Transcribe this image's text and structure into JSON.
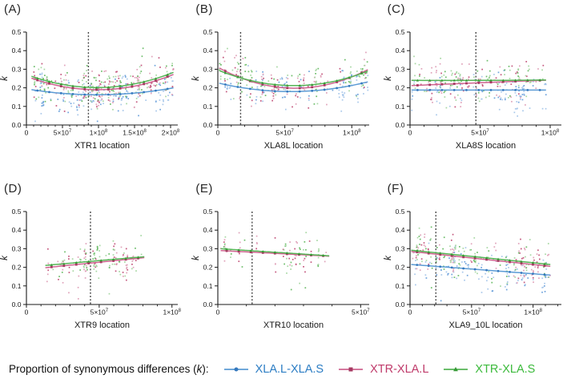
{
  "figure": {
    "background": "#ffffff",
    "ylabel_shared": "k",
    "ylim_shared": [
      0,
      0.5
    ]
  },
  "colors": {
    "blue": {
      "point": "#a9c8ea",
      "point2": "#6fa3dc",
      "line": "#5b9bd5",
      "marker": "#3679be",
      "text": "#2c7dc4"
    },
    "pink": {
      "point": "#e0a3ba",
      "point2": "#c4587e",
      "line": "#cf6490",
      "marker": "#a63a62",
      "text": "#bf3a6a"
    },
    "green": {
      "point": "#a8d8a4",
      "point2": "#6dbd6a",
      "line": "#56b456",
      "marker": "#379a37",
      "text": "#3cba3c"
    },
    "axis": "#1a1a1a",
    "dashed": "#4a4a4a"
  },
  "legend": {
    "prefix": "Proportion of synonymous differences (",
    "k_symbol": "k",
    "suffix": "):",
    "items": [
      {
        "name": "XLA.L-XLA.S",
        "marker": "circle",
        "color_key": "blue"
      },
      {
        "name": "XTR-XLA.L",
        "marker": "square",
        "color_key": "pink"
      },
      {
        "name": "XTR-XLA.S",
        "marker": "triangle",
        "color_key": "green"
      }
    ]
  },
  "chart_data": [
    {
      "id": "A",
      "panel_label": "(A)",
      "type": "scatter",
      "xlabel": "XTR1 location",
      "ylabel": "k",
      "xlim": [
        0,
        210000000
      ],
      "ylim": [
        0,
        0.5
      ],
      "xticks": [
        {
          "v": 0,
          "label": "0"
        },
        {
          "v": 50000000,
          "label": "5×10^7"
        },
        {
          "v": 100000000,
          "label": "1×10^8"
        },
        {
          "v": 150000000,
          "label": "1.5×10^8"
        },
        {
          "v": 200000000,
          "label": "2×10^8"
        }
      ],
      "minor_xtick_step": 10000000,
      "yticks": [
        0,
        0.1,
        0.2,
        0.3,
        0.4,
        0.5
      ],
      "dashed_line_x": 86000000,
      "data_xrange": [
        7000000,
        204000000
      ],
      "series": [
        {
          "name": "XLA.L-XLA.S",
          "color_key": "blue",
          "marker": "circle",
          "trend": {
            "shape": "quadratic",
            "y_start": 0.19,
            "y_mid": 0.163,
            "y_end": 0.2
          },
          "scatter": {
            "n": 150,
            "spread": 0.05
          }
        },
        {
          "name": "XTR-XLA.L",
          "color_key": "pink",
          "marker": "square",
          "trend": {
            "shape": "quadratic",
            "y_start": 0.252,
            "y_mid": 0.19,
            "y_end": 0.272
          },
          "scatter": {
            "n": 150,
            "spread": 0.05
          }
        },
        {
          "name": "XTR-XLA.S",
          "color_key": "green",
          "marker": "triangle",
          "trend": {
            "shape": "quadratic",
            "y_start": 0.262,
            "y_mid": 0.202,
            "y_end": 0.283
          },
          "scatter": {
            "n": 150,
            "spread": 0.05
          }
        }
      ]
    },
    {
      "id": "B",
      "panel_label": "(B)",
      "type": "scatter",
      "xlabel": "XLA8L location",
      "ylabel": "k",
      "xlim": [
        0,
        113000000
      ],
      "ylim": [
        0,
        0.5
      ],
      "xticks": [
        {
          "v": 0,
          "label": "0"
        },
        {
          "v": 50000000,
          "label": "5×10^7"
        },
        {
          "v": 100000000,
          "label": "1×10^8"
        }
      ],
      "minor_xtick_step": 10000000,
      "yticks": [
        0,
        0.1,
        0.2,
        0.3,
        0.4,
        0.5
      ],
      "dashed_line_x": 17000000,
      "data_xrange": [
        1000000,
        112000000
      ],
      "series": [
        {
          "name": "XLA.L-XLA.S",
          "color_key": "blue",
          "marker": "circle",
          "trend": {
            "shape": "quadratic",
            "y_start": 0.225,
            "y_mid": 0.18,
            "y_end": 0.232
          },
          "scatter": {
            "n": 95,
            "spread": 0.048
          }
        },
        {
          "name": "XTR-XLA.L",
          "color_key": "pink",
          "marker": "square",
          "trend": {
            "shape": "quadratic",
            "y_start": 0.307,
            "y_mid": 0.198,
            "y_end": 0.298
          },
          "scatter": {
            "n": 95,
            "spread": 0.05
          }
        },
        {
          "name": "XTR-XLA.S",
          "color_key": "green",
          "marker": "triangle",
          "trend": {
            "shape": "quadratic",
            "y_start": 0.293,
            "y_mid": 0.212,
            "y_end": 0.29
          },
          "scatter": {
            "n": 95,
            "spread": 0.05
          }
        }
      ]
    },
    {
      "id": "C",
      "panel_label": "(C)",
      "type": "scatter",
      "xlabel": "XLA8S location",
      "ylabel": "k",
      "xlim": [
        0,
        108000000
      ],
      "ylim": [
        0,
        0.5
      ],
      "xticks": [
        {
          "v": 0,
          "label": "0"
        },
        {
          "v": 50000000,
          "label": "5×10^7"
        },
        {
          "v": 100000000,
          "label": "1×10^8"
        }
      ],
      "minor_xtick_step": 10000000,
      "yticks": [
        0,
        0.1,
        0.2,
        0.3,
        0.4,
        0.5
      ],
      "dashed_line_x": 47000000,
      "data_xrange": [
        1000000,
        97000000
      ],
      "series": [
        {
          "name": "XLA.L-XLA.S",
          "color_key": "blue",
          "marker": "circle",
          "trend": {
            "shape": "linear",
            "y_start": 0.188,
            "y_mid": 0.188,
            "y_end": 0.188
          },
          "scatter": {
            "n": 95,
            "spread": 0.048
          }
        },
        {
          "name": "XTR-XLA.L",
          "color_key": "pink",
          "marker": "square",
          "trend": {
            "shape": "linear",
            "y_start": 0.212,
            "y_mid": 0.227,
            "y_end": 0.241
          },
          "scatter": {
            "n": 95,
            "spread": 0.05
          }
        },
        {
          "name": "XTR-XLA.S",
          "color_key": "green",
          "marker": "triangle",
          "trend": {
            "shape": "linear",
            "y_start": 0.24,
            "y_mid": 0.24,
            "y_end": 0.242
          },
          "scatter": {
            "n": 95,
            "spread": 0.05
          }
        }
      ]
    },
    {
      "id": "D",
      "panel_label": "(D)",
      "type": "scatter",
      "xlabel": "XTR9 location",
      "ylabel": "k",
      "xlim": [
        0,
        104000000
      ],
      "ylim": [
        0,
        0.5
      ],
      "xticks": [
        {
          "v": 0,
          "label": "0"
        },
        {
          "v": 50000000,
          "label": "5×10^7"
        },
        {
          "v": 100000000,
          "label": "1×10^8"
        }
      ],
      "minor_xtick_step": 10000000,
      "yticks": [
        0,
        0.1,
        0.2,
        0.3,
        0.4,
        0.5
      ],
      "dashed_line_x": 44000000,
      "data_xrange": [
        13000000,
        81000000
      ],
      "series": [
        {
          "name": "XTR-XLA.L",
          "color_key": "pink",
          "marker": "square",
          "trend": {
            "shape": "linear",
            "y_start": 0.198,
            "y_mid": 0.225,
            "y_end": 0.252
          },
          "scatter": {
            "n": 72,
            "spread": 0.042
          }
        },
        {
          "name": "XTR-XLA.S",
          "color_key": "green",
          "marker": "triangle",
          "trend": {
            "shape": "linear",
            "y_start": 0.21,
            "y_mid": 0.234,
            "y_end": 0.257
          },
          "scatter": {
            "n": 72,
            "spread": 0.042
          }
        }
      ]
    },
    {
      "id": "E",
      "panel_label": "(E)",
      "type": "scatter",
      "xlabel": "XTR10 location",
      "ylabel": "k",
      "xlim": [
        0,
        53000000
      ],
      "ylim": [
        0,
        0.5
      ],
      "xticks": [
        {
          "v": 0,
          "label": "0"
        },
        {
          "v": 50000000,
          "label": "5×10^7"
        }
      ],
      "minor_xtick_step": 10000000,
      "yticks": [
        0,
        0.1,
        0.2,
        0.3,
        0.4,
        0.5
      ],
      "dashed_line_x": 12000000,
      "data_xrange": [
        1000000,
        39000000
      ],
      "series": [
        {
          "name": "XTR-XLA.L",
          "color_key": "pink",
          "marker": "square",
          "trend": {
            "shape": "linear",
            "y_start": 0.29,
            "y_mid": 0.275,
            "y_end": 0.26
          },
          "scatter": {
            "n": 45,
            "spread": 0.05
          }
        },
        {
          "name": "XTR-XLA.S",
          "color_key": "green",
          "marker": "triangle",
          "trend": {
            "shape": "linear",
            "y_start": 0.3,
            "y_mid": 0.281,
            "y_end": 0.262
          },
          "scatter": {
            "n": 45,
            "spread": 0.05
          }
        }
      ]
    },
    {
      "id": "F",
      "panel_label": "(F)",
      "type": "scatter",
      "xlabel": "XLA9_10L location",
      "ylabel": "k",
      "xlim": [
        0,
        123000000
      ],
      "ylim": [
        0,
        0.5
      ],
      "xticks": [
        {
          "v": 0,
          "label": "0"
        },
        {
          "v": 50000000,
          "label": "5×10^7"
        },
        {
          "v": 100000000,
          "label": "1×10^8"
        }
      ],
      "minor_xtick_step": 10000000,
      "yticks": [
        0,
        0.1,
        0.2,
        0.3,
        0.4,
        0.5
      ],
      "dashed_line_x": 21000000,
      "data_xrange": [
        1000000,
        114000000
      ],
      "series": [
        {
          "name": "XLA.L-XLA.S",
          "color_key": "blue",
          "marker": "circle",
          "trend": {
            "shape": "linear",
            "y_start": 0.215,
            "y_mid": 0.187,
            "y_end": 0.158
          },
          "scatter": {
            "n": 112,
            "spread": 0.05
          }
        },
        {
          "name": "XTR-XLA.L",
          "color_key": "pink",
          "marker": "square",
          "trend": {
            "shape": "linear",
            "y_start": 0.285,
            "y_mid": 0.245,
            "y_end": 0.205
          },
          "scatter": {
            "n": 112,
            "spread": 0.05
          }
        },
        {
          "name": "XTR-XLA.S",
          "color_key": "green",
          "marker": "triangle",
          "trend": {
            "shape": "linear",
            "y_start": 0.292,
            "y_mid": 0.254,
            "y_end": 0.215
          },
          "scatter": {
            "n": 112,
            "spread": 0.05
          }
        }
      ]
    }
  ]
}
